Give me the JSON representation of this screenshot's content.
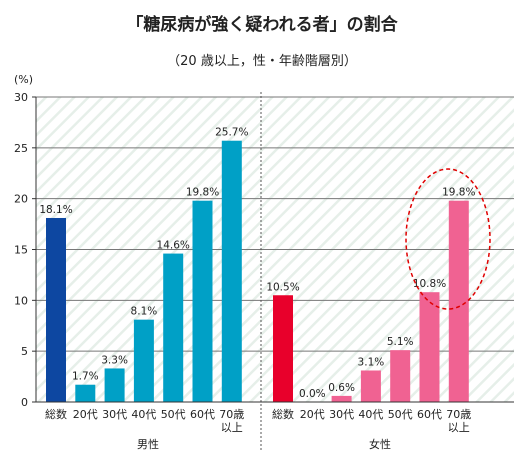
{
  "chart_data": {
    "type": "bar",
    "title": "「糖尿病が強く疑われる者」の割合",
    "subtitle": "（20 歳以上，性・年齢階層別）",
    "yunit": "(%)",
    "ylim": [
      0,
      30
    ],
    "yticks": [
      0,
      5,
      10,
      15,
      20,
      25,
      30
    ],
    "grid": true,
    "groups": [
      {
        "name": "男性",
        "categories": [
          "総数",
          "20代",
          "30代",
          "40代",
          "50代",
          "60代",
          "70歳\n以上"
        ],
        "values": [
          18.1,
          1.7,
          3.3,
          8.1,
          14.6,
          19.8,
          25.7
        ],
        "value_labels": [
          "18.1%",
          "1.7%",
          "3.3%",
          "8.1%",
          "14.6%",
          "19.8%",
          "25.7%"
        ],
        "colors": [
          "#0d47a1",
          "#00a0c6",
          "#00a0c6",
          "#00a0c6",
          "#00a0c6",
          "#00a0c6",
          "#00a0c6"
        ]
      },
      {
        "name": "女性",
        "categories": [
          "総数",
          "20代",
          "30代",
          "40代",
          "50代",
          "60代",
          "70歳\n以上"
        ],
        "values": [
          10.5,
          0.0,
          0.6,
          3.1,
          5.1,
          10.8,
          19.8
        ],
        "value_labels": [
          "10.5%",
          "0.0%",
          "0.6%",
          "3.1%",
          "5.1%",
          "10.8%",
          "19.8%"
        ],
        "colors": [
          "#e8002b",
          "#f06292",
          "#f06292",
          "#f06292",
          "#f06292",
          "#f06292",
          "#f06292"
        ]
      }
    ],
    "annotation": {
      "type": "ellipse",
      "color": "#e00000",
      "highlights": "女性 60代, 70歳以上"
    }
  }
}
